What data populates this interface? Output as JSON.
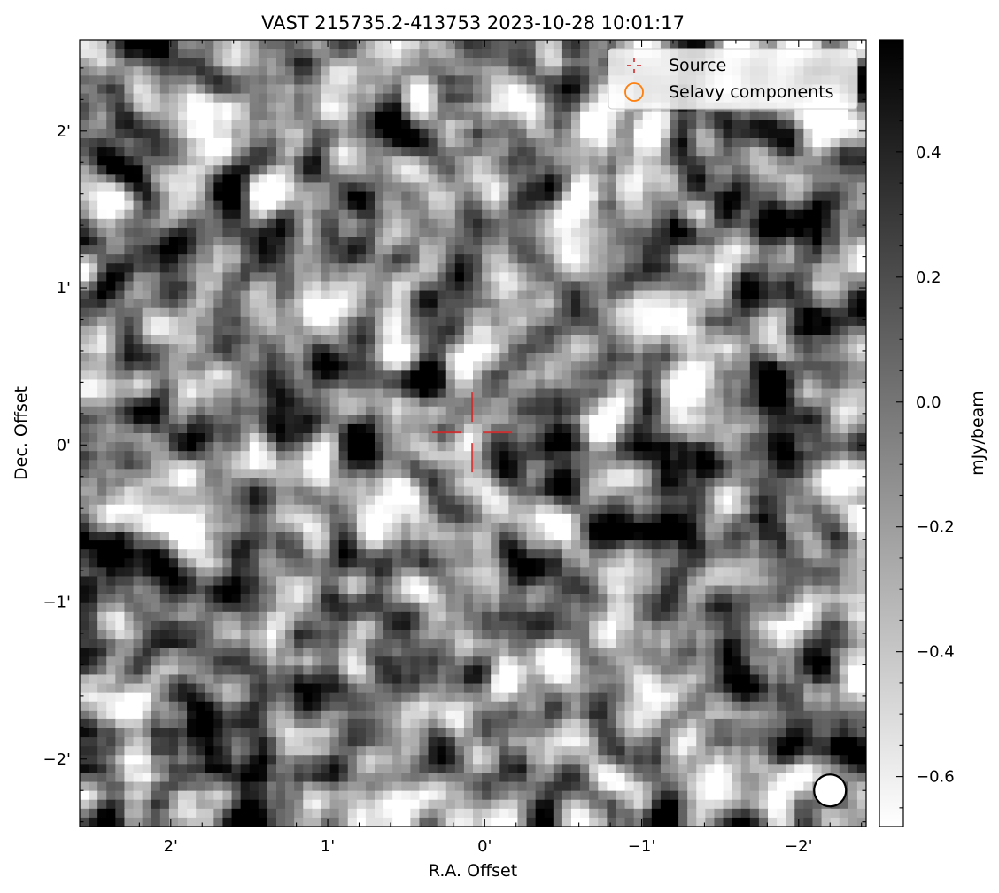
{
  "chart_data": {
    "type": "heatmap",
    "title": "VAST 215735.2-413753 2023-10-28 10:01:17",
    "xlabel": "R.A. Offset",
    "ylabel": "Dec. Offset",
    "x_unit": "arcmin",
    "y_unit": "arcmin",
    "xlim": [
      2.58,
      -2.43
    ],
    "ylim": [
      -2.43,
      2.58
    ],
    "x_ticks": [
      {
        "value": 2,
        "label": "2'"
      },
      {
        "value": 1,
        "label": "1'"
      },
      {
        "value": 0,
        "label": "0'"
      },
      {
        "value": -1,
        "label": "−1'"
      },
      {
        "value": -2,
        "label": "−2'"
      }
    ],
    "y_ticks": [
      {
        "value": 2,
        "label": "2'"
      },
      {
        "value": 1,
        "label": "1'"
      },
      {
        "value": 0,
        "label": "0'"
      },
      {
        "value": -1,
        "label": "−1'"
      },
      {
        "value": -2,
        "label": "−2'"
      }
    ],
    "colormap": "gray_r",
    "colorbar": {
      "label": "mJy/beam",
      "vmin": -0.68,
      "vmax": 0.58,
      "ticks": [
        {
          "value": 0.4,
          "label": "0.4"
        },
        {
          "value": 0.2,
          "label": "0.2"
        },
        {
          "value": 0.0,
          "label": "0.0"
        },
        {
          "value": -0.2,
          "label": "−0.2"
        },
        {
          "value": -0.4,
          "label": "−0.4"
        },
        {
          "value": -0.6,
          "label": "−0.6"
        }
      ]
    },
    "grid": false,
    "legend": {
      "placement": "upper right",
      "entries": [
        {
          "label": "Source",
          "marker": "crosshair",
          "color": "#d62728"
        },
        {
          "label": "Selavy components",
          "marker": "open-circle",
          "color": "#ff7f0e"
        }
      ]
    },
    "source_marker": {
      "x": 0.08,
      "y": 0.08,
      "color": "#d62728"
    },
    "beam": {
      "x": -2.2,
      "y": -2.2,
      "shape": "ellipse",
      "face_color": "#ffffff",
      "edge_color": "#000000"
    },
    "image_noise_texture": {
      "grid_cells": 88,
      "random_seed": 215735
    }
  }
}
